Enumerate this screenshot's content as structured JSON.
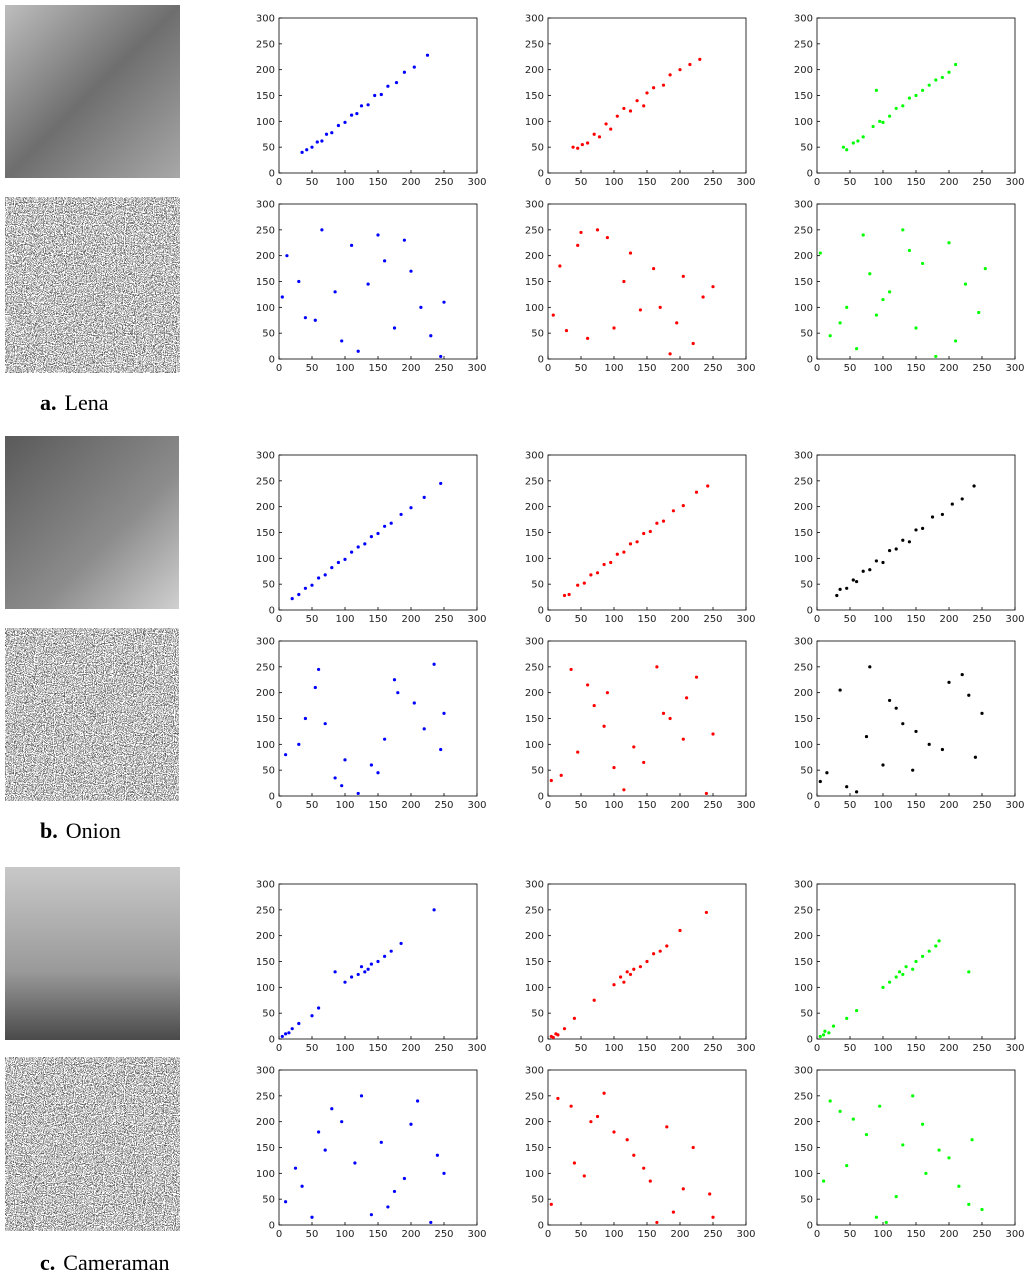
{
  "captions": [
    {
      "label": "a.",
      "name": "Lena"
    },
    {
      "label": "b.",
      "name": "Onion"
    },
    {
      "label": "c.",
      "name": "Cameraman"
    }
  ],
  "chart_data": [
    {
      "type": "scatter",
      "color": "#0000ff",
      "x": [
        35,
        42,
        50,
        58,
        65,
        72,
        80,
        90,
        100,
        110,
        118,
        125,
        135,
        145,
        155,
        165,
        178,
        190,
        205,
        225
      ],
      "values": [
        40,
        45,
        50,
        60,
        62,
        75,
        78,
        92,
        98,
        112,
        115,
        130,
        132,
        150,
        152,
        168,
        175,
        195,
        205,
        228
      ],
      "xlim": [
        0,
        300
      ],
      "ylim": [
        0,
        300
      ],
      "xticks": [
        0,
        50,
        100,
        150,
        200,
        250,
        300
      ],
      "yticks": [
        0,
        50,
        100,
        150,
        200,
        250,
        300
      ]
    },
    {
      "type": "scatter",
      "color": "#ff0000",
      "x": [
        38,
        45,
        52,
        60,
        70,
        78,
        88,
        95,
        105,
        115,
        125,
        135,
        145,
        150,
        160,
        175,
        185,
        200,
        215,
        230
      ],
      "values": [
        50,
        48,
        55,
        58,
        75,
        70,
        95,
        85,
        110,
        125,
        120,
        140,
        130,
        155,
        165,
        170,
        190,
        200,
        210,
        220
      ],
      "xlim": [
        0,
        300
      ],
      "ylim": [
        0,
        300
      ],
      "xticks": [
        0,
        50,
        100,
        150,
        200,
        250,
        300
      ],
      "yticks": [
        0,
        50,
        100,
        150,
        200,
        250,
        300
      ]
    },
    {
      "type": "scatter",
      "color": "#00ff00",
      "x": [
        40,
        45,
        55,
        62,
        70,
        85,
        95,
        100,
        110,
        120,
        130,
        140,
        150,
        160,
        170,
        180,
        190,
        200,
        210,
        90
      ],
      "values": [
        50,
        45,
        58,
        62,
        70,
        90,
        100,
        98,
        110,
        125,
        130,
        145,
        150,
        160,
        170,
        180,
        185,
        195,
        210,
        160
      ],
      "xlim": [
        0,
        300
      ],
      "ylim": [
        0,
        300
      ],
      "xticks": [
        0,
        50,
        100,
        150,
        200,
        250,
        300
      ],
      "yticks": [
        0,
        50,
        100,
        150,
        200,
        250,
        300
      ]
    },
    {
      "type": "scatter",
      "color": "#0000ff",
      "x": [
        12,
        230,
        85,
        150,
        40,
        200,
        120,
        250,
        65,
        175,
        30,
        110,
        215,
        95,
        160,
        5,
        245,
        55,
        190,
        135
      ],
      "values": [
        200,
        45,
        130,
        240,
        80,
        170,
        15,
        110,
        250,
        60,
        150,
        220,
        100,
        35,
        190,
        120,
        5,
        75,
        230,
        145
      ],
      "xlim": [
        0,
        300
      ],
      "ylim": [
        0,
        300
      ],
      "xticks": [
        0,
        50,
        100,
        150,
        200,
        250,
        300
      ],
      "yticks": [
        0,
        50,
        100,
        150,
        200,
        250,
        300
      ]
    },
    {
      "type": "scatter",
      "color": "#ff0000",
      "x": [
        220,
        18,
        140,
        75,
        250,
        100,
        45,
        185,
        160,
        8,
        125,
        235,
        60,
        205,
        90,
        170,
        28,
        115,
        195,
        50
      ],
      "values": [
        30,
        180,
        95,
        250,
        140,
        60,
        220,
        10,
        175,
        85,
        205,
        120,
        40,
        160,
        235,
        100,
        55,
        150,
        70,
        245
      ],
      "xlim": [
        0,
        300
      ],
      "ylim": [
        0,
        300
      ],
      "xticks": [
        0,
        50,
        100,
        150,
        200,
        250,
        300
      ],
      "yticks": [
        0,
        50,
        100,
        150,
        200,
        250,
        300
      ]
    },
    {
      "type": "scatter",
      "color": "#00ff00",
      "x": [
        100,
        200,
        20,
        160,
        60,
        245,
        130,
        80,
        225,
        35,
        180,
        5,
        150,
        110,
        255,
        70,
        210,
        45,
        140,
        90
      ],
      "values": [
        115,
        225,
        45,
        185,
        20,
        90,
        250,
        165,
        145,
        70,
        5,
        205,
        60,
        130,
        175,
        240,
        35,
        100,
        210,
        85
      ],
      "xlim": [
        0,
        300
      ],
      "ylim": [
        0,
        300
      ],
      "xticks": [
        0,
        50,
        100,
        150,
        200,
        250,
        300
      ],
      "yticks": [
        0,
        50,
        100,
        150,
        200,
        250,
        300
      ]
    },
    {
      "type": "scatter",
      "color": "#0000ff",
      "x": [
        20,
        30,
        40,
        50,
        60,
        70,
        80,
        90,
        100,
        110,
        120,
        130,
        140,
        150,
        160,
        170,
        185,
        200,
        220,
        245
      ],
      "values": [
        22,
        30,
        42,
        48,
        62,
        68,
        82,
        92,
        98,
        112,
        122,
        128,
        142,
        148,
        162,
        168,
        185,
        198,
        218,
        245
      ],
      "xlim": [
        0,
        300
      ],
      "ylim": [
        0,
        300
      ],
      "xticks": [
        0,
        50,
        100,
        150,
        200,
        250,
        300
      ],
      "yticks": [
        0,
        50,
        100,
        150,
        200,
        250,
        300
      ]
    },
    {
      "type": "scatter",
      "color": "#ff0000",
      "x": [
        25,
        32,
        45,
        55,
        65,
        75,
        85,
        95,
        105,
        115,
        125,
        135,
        145,
        155,
        165,
        175,
        190,
        205,
        225,
        242
      ],
      "values": [
        28,
        30,
        48,
        52,
        68,
        72,
        88,
        92,
        108,
        112,
        128,
        132,
        148,
        152,
        168,
        172,
        192,
        202,
        228,
        240
      ],
      "xlim": [
        0,
        300
      ],
      "ylim": [
        0,
        300
      ],
      "xticks": [
        0,
        50,
        100,
        150,
        200,
        250,
        300
      ],
      "yticks": [
        0,
        50,
        100,
        150,
        200,
        250,
        300
      ]
    },
    {
      "type": "scatter",
      "color": "#000000",
      "x": [
        30,
        35,
        45,
        55,
        60,
        70,
        80,
        90,
        100,
        110,
        120,
        130,
        140,
        150,
        160,
        175,
        190,
        205,
        220,
        238
      ],
      "values": [
        28,
        40,
        42,
        58,
        55,
        75,
        78,
        95,
        92,
        115,
        118,
        135,
        132,
        155,
        158,
        180,
        185,
        205,
        215,
        240
      ],
      "xlim": [
        0,
        300
      ],
      "ylim": [
        0,
        300
      ],
      "xticks": [
        0,
        50,
        100,
        150,
        200,
        250,
        300
      ],
      "yticks": [
        0,
        50,
        100,
        150,
        200,
        250,
        300
      ]
    },
    {
      "type": "scatter",
      "color": "#0000ff",
      "x": [
        30,
        180,
        95,
        250,
        140,
        60,
        220,
        10,
        175,
        85,
        205,
        120,
        40,
        160,
        235,
        100,
        55,
        150,
        70,
        245
      ],
      "values": [
        100,
        200,
        20,
        160,
        60,
        245,
        130,
        80,
        225,
        35,
        180,
        5,
        150,
        110,
        255,
        70,
        210,
        45,
        140,
        90
      ],
      "xlim": [
        0,
        300
      ],
      "ylim": [
        0,
        300
      ],
      "xticks": [
        0,
        50,
        100,
        150,
        200,
        250,
        300
      ],
      "yticks": [
        0,
        50,
        100,
        150,
        200,
        250,
        300
      ]
    },
    {
      "type": "scatter",
      "color": "#ff0000",
      "x": [
        115,
        225,
        45,
        185,
        20,
        90,
        250,
        165,
        145,
        70,
        5,
        205,
        60,
        130,
        175,
        240,
        35,
        100,
        210,
        85
      ],
      "values": [
        12,
        230,
        85,
        150,
        40,
        200,
        120,
        250,
        65,
        175,
        30,
        110,
        215,
        95,
        160,
        5,
        245,
        55,
        190,
        135
      ],
      "xlim": [
        0,
        300
      ],
      "ylim": [
        0,
        300
      ],
      "xticks": [
        0,
        50,
        100,
        150,
        200,
        250,
        300
      ],
      "yticks": [
        0,
        50,
        100,
        150,
        200,
        250,
        300
      ]
    },
    {
      "type": "scatter",
      "color": "#000000",
      "x": [
        200,
        45,
        130,
        240,
        80,
        170,
        15,
        110,
        250,
        60,
        150,
        220,
        100,
        35,
        190,
        120,
        5,
        75,
        230,
        145
      ],
      "values": [
        220,
        18,
        140,
        75,
        250,
        100,
        45,
        185,
        160,
        8,
        125,
        235,
        60,
        205,
        90,
        170,
        28,
        115,
        195,
        50
      ],
      "xlim": [
        0,
        300
      ],
      "ylim": [
        0,
        300
      ],
      "xticks": [
        0,
        50,
        100,
        150,
        200,
        250,
        300
      ],
      "yticks": [
        0,
        50,
        100,
        150,
        200,
        250,
        300
      ]
    },
    {
      "type": "scatter",
      "color": "#0000ff",
      "x": [
        5,
        10,
        15,
        20,
        30,
        50,
        60,
        85,
        100,
        110,
        120,
        125,
        130,
        135,
        140,
        150,
        160,
        170,
        185,
        235
      ],
      "values": [
        5,
        10,
        12,
        20,
        30,
        45,
        60,
        130,
        110,
        120,
        125,
        140,
        130,
        135,
        145,
        150,
        160,
        170,
        185,
        250
      ],
      "xlim": [
        0,
        300
      ],
      "ylim": [
        0,
        300
      ],
      "xticks": [
        0,
        50,
        100,
        150,
        200,
        250,
        300
      ],
      "yticks": [
        0,
        50,
        100,
        150,
        200,
        250,
        300
      ]
    },
    {
      "type": "scatter",
      "color": "#ff0000",
      "x": [
        5,
        8,
        12,
        15,
        25,
        40,
        70,
        100,
        110,
        115,
        120,
        125,
        130,
        140,
        150,
        160,
        170,
        180,
        200,
        240
      ],
      "values": [
        5,
        3,
        10,
        8,
        20,
        40,
        75,
        105,
        120,
        110,
        130,
        125,
        135,
        140,
        150,
        165,
        170,
        180,
        210,
        245
      ],
      "xlim": [
        0,
        300
      ],
      "ylim": [
        0,
        300
      ],
      "xticks": [
        0,
        50,
        100,
        150,
        200,
        250,
        300
      ],
      "yticks": [
        0,
        50,
        100,
        150,
        200,
        250,
        300
      ]
    },
    {
      "type": "scatter",
      "color": "#00ff00",
      "x": [
        5,
        10,
        12,
        18,
        25,
        45,
        60,
        100,
        110,
        120,
        125,
        130,
        135,
        145,
        150,
        160,
        170,
        180,
        185,
        230
      ],
      "values": [
        5,
        8,
        15,
        12,
        25,
        40,
        55,
        100,
        110,
        120,
        130,
        125,
        140,
        135,
        150,
        160,
        170,
        180,
        190,
        130
      ],
      "xlim": [
        0,
        300
      ],
      "ylim": [
        0,
        300
      ],
      "xticks": [
        0,
        50,
        100,
        150,
        200,
        250,
        300
      ],
      "yticks": [
        0,
        50,
        100,
        150,
        200,
        250,
        300
      ]
    },
    {
      "type": "scatter",
      "color": "#0000ff",
      "x": [
        60,
        140,
        210,
        25,
        175,
        95,
        240,
        10,
        125,
        190,
        50,
        155,
        80,
        230,
        115,
        35,
        200,
        165,
        70,
        250
      ],
      "values": [
        180,
        20,
        240,
        110,
        65,
        200,
        135,
        45,
        250,
        90,
        15,
        160,
        225,
        5,
        120,
        75,
        195,
        35,
        145,
        100
      ],
      "xlim": [
        0,
        300
      ],
      "ylim": [
        0,
        300
      ],
      "xticks": [
        0,
        50,
        100,
        150,
        200,
        250,
        300
      ],
      "yticks": [
        0,
        50,
        100,
        150,
        200,
        250,
        300
      ]
    },
    {
      "type": "scatter",
      "color": "#ff0000",
      "x": [
        245,
        75,
        130,
        15,
        190,
        100,
        55,
        220,
        165,
        35,
        145,
        205,
        85,
        5,
        180,
        120,
        250,
        40,
        155,
        65
      ],
      "values": [
        60,
        210,
        135,
        245,
        25,
        180,
        95,
        150,
        5,
        230,
        110,
        70,
        255,
        40,
        190,
        165,
        15,
        120,
        85,
        200
      ],
      "xlim": [
        0,
        300
      ],
      "ylim": [
        0,
        300
      ],
      "xticks": [
        0,
        50,
        100,
        150,
        200,
        250,
        300
      ],
      "yticks": [
        0,
        50,
        100,
        150,
        200,
        250,
        300
      ]
    },
    {
      "type": "scatter",
      "color": "#00ff00",
      "x": [
        20,
        165,
        90,
        235,
        55,
        120,
        200,
        145,
        10,
        250,
        75,
        185,
        35,
        215,
        105,
        160,
        45,
        230,
        130,
        95
      ],
      "values": [
        240,
        100,
        15,
        165,
        205,
        55,
        130,
        250,
        85,
        30,
        175,
        145,
        220,
        75,
        5,
        195,
        115,
        40,
        155,
        230
      ],
      "xlim": [
        0,
        300
      ],
      "ylim": [
        0,
        300
      ],
      "xticks": [
        0,
        50,
        100,
        150,
        200,
        250,
        300
      ],
      "yticks": [
        0,
        50,
        100,
        150,
        200,
        250,
        300
      ]
    }
  ]
}
